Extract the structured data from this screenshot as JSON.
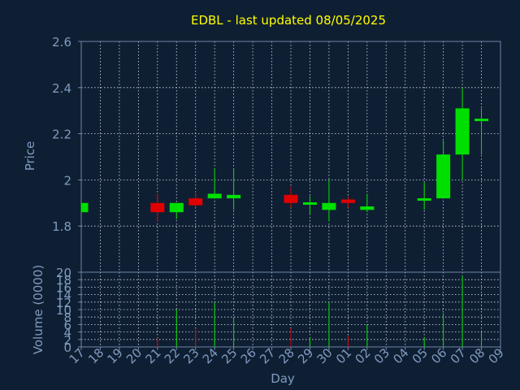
{
  "chart_data": {
    "type": "candlestick",
    "title": "EDBL - last updated 08/05/2025",
    "xlabel": "Day",
    "ylabel_price": "Price",
    "ylabel_volume": "Volume (0000)",
    "price_ylim": [
      1.6,
      2.6
    ],
    "price_ticks": [
      "1.8",
      "2",
      "2.2",
      "2.4",
      "2.6"
    ],
    "volume_ylim": [
      0,
      20
    ],
    "volume_ticks": [
      "0",
      "2",
      "4",
      "6",
      "8",
      "10",
      "12",
      "14",
      "16",
      "18",
      "20"
    ],
    "x_tick_labels": [
      "17",
      "18",
      "19",
      "20",
      "21",
      "22",
      "23",
      "24",
      "25",
      "26",
      "27",
      "28",
      "29",
      "30",
      "01",
      "02",
      "03",
      "04",
      "05",
      "06",
      "07",
      "08",
      "09"
    ],
    "grid": true,
    "colors": {
      "background": "#0f1f33",
      "axis": "#6f86a6",
      "text": "#7f9bbf",
      "title": "#ffff00",
      "grid": "#d8dce4",
      "up": "#00e000",
      "down": "#e00000"
    },
    "candles": [
      {
        "day": "17",
        "open": 1.86,
        "high": 1.9,
        "low": 1.86,
        "close": 1.9
      },
      {
        "day": "21",
        "open": 1.9,
        "high": 1.94,
        "low": 1.82,
        "close": 1.86
      },
      {
        "day": "22",
        "open": 1.86,
        "high": 1.9,
        "low": 1.83,
        "close": 1.9
      },
      {
        "day": "23",
        "open": 1.92,
        "high": 1.95,
        "low": 1.88,
        "close": 1.89
      },
      {
        "day": "24",
        "open": 1.92,
        "high": 2.05,
        "low": 1.92,
        "close": 1.94
      },
      {
        "day": "25",
        "open": 1.92,
        "high": 2.05,
        "low": 1.87,
        "close": 1.935
      },
      {
        "day": "28",
        "open": 1.935,
        "high": 1.97,
        "low": 1.88,
        "close": 1.9
      },
      {
        "day": "29",
        "open": 1.895,
        "high": 1.93,
        "low": 1.85,
        "close": 1.9
      },
      {
        "day": "30",
        "open": 1.87,
        "high": 2.0,
        "low": 1.82,
        "close": 1.9
      },
      {
        "day": "01",
        "open": 1.915,
        "high": 1.93,
        "low": 1.88,
        "close": 1.9
      },
      {
        "day": "02",
        "open": 1.87,
        "high": 1.94,
        "low": 1.86,
        "close": 1.885
      },
      {
        "day": "05",
        "open": 1.91,
        "high": 1.99,
        "low": 1.87,
        "close": 1.92
      },
      {
        "day": "06",
        "open": 1.92,
        "high": 2.17,
        "low": 1.92,
        "close": 2.11
      },
      {
        "day": "07",
        "open": 2.11,
        "high": 2.4,
        "low": 2.0,
        "close": 2.31
      },
      {
        "day": "08",
        "open": 2.255,
        "high": 2.31,
        "low": 2.11,
        "close": 2.265
      }
    ],
    "volume": [
      {
        "day": "21",
        "value": 2.5,
        "dir": "down"
      },
      {
        "day": "22",
        "value": 10,
        "dir": "up"
      },
      {
        "day": "23",
        "value": 5,
        "dir": "down"
      },
      {
        "day": "24",
        "value": 12,
        "dir": "up"
      },
      {
        "day": "25",
        "value": 8,
        "dir": "up"
      },
      {
        "day": "28",
        "value": 5,
        "dir": "down"
      },
      {
        "day": "29",
        "value": 2.5,
        "dir": "up"
      },
      {
        "day": "30",
        "value": 12,
        "dir": "up"
      },
      {
        "day": "01",
        "value": 3,
        "dir": "down"
      },
      {
        "day": "02",
        "value": 6,
        "dir": "up"
      },
      {
        "day": "05",
        "value": 2.5,
        "dir": "up"
      },
      {
        "day": "06",
        "value": 9,
        "dir": "up"
      },
      {
        "day": "07",
        "value": 19,
        "dir": "up"
      },
      {
        "day": "08",
        "value": 4,
        "dir": "up"
      }
    ]
  }
}
